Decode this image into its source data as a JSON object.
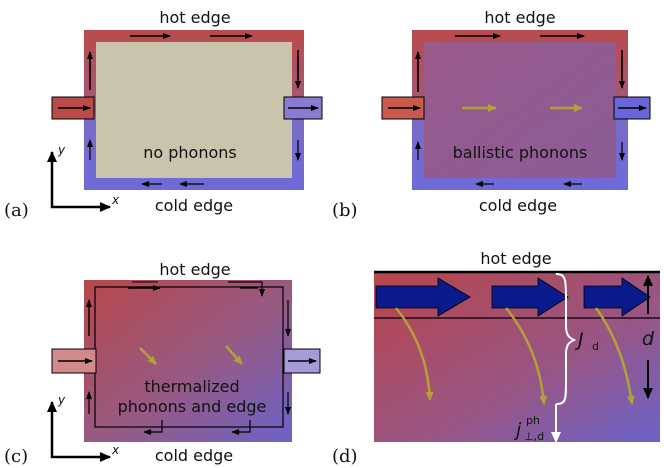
{
  "panels": {
    "a": {
      "tag": "(a)",
      "hot": "hot edge",
      "cold": "cold edge",
      "center": "no phonons",
      "axis_x": "x",
      "axis_y": "y"
    },
    "b": {
      "tag": "(b)",
      "hot": "hot edge",
      "cold": "cold edge",
      "center": "ballistic phonons"
    },
    "c": {
      "tag": "(c)",
      "hot": "hot edge",
      "cold": "cold edge",
      "center_line1": "thermalized",
      "center_line2": "phonons and edge",
      "axis_x": "x",
      "axis_y": "y"
    },
    "d": {
      "tag": "(d)",
      "hot": "hot edge",
      "J_symbol": "J",
      "J_sub": "d",
      "d_label": "d",
      "j_symbol": "j",
      "j_sup": "ph",
      "j_sub": "⊥,d"
    }
  },
  "colors": {
    "hot": "#b94b4a",
    "cold": "#6e6ad6",
    "neutral_fill": "#c9c4ab",
    "phonon_arrow": "#b5a038",
    "current_arrow": "#0a1a8a"
  }
}
